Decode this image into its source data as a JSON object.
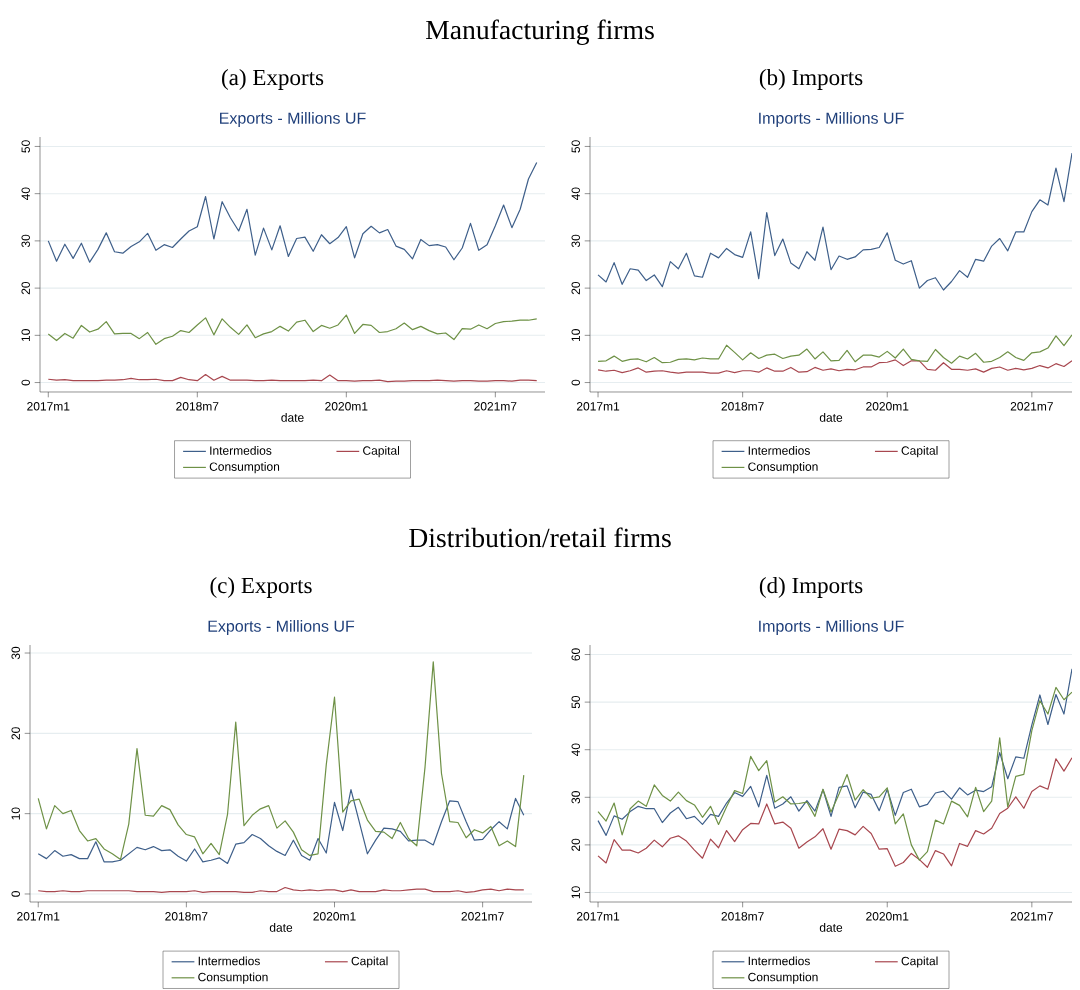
{
  "chart_data": [
    {
      "type": "line",
      "annotations": [
        "Manufacturing firms"
      ],
      "subtitle": "(a) Exports",
      "title": "Exports - Millions UF",
      "xlabel": "date",
      "grid": "y",
      "legend": "bottom",
      "x": [
        "2017-01",
        "2017-02",
        "2017-03",
        "2017-04",
        "2017-05",
        "2017-06",
        "2017-07",
        "2017-08",
        "2017-09",
        "2017-10",
        "2017-11",
        "2017-12",
        "2018-01",
        "2018-02",
        "2018-03",
        "2018-04",
        "2018-05",
        "2018-06",
        "2018-07",
        "2018-08",
        "2018-09",
        "2018-10",
        "2018-11",
        "2018-12",
        "2019-01",
        "2019-02",
        "2019-03",
        "2019-04",
        "2019-05",
        "2019-06",
        "2019-07",
        "2019-08",
        "2019-09",
        "2019-10",
        "2019-11",
        "2019-12",
        "2020-01",
        "2020-02",
        "2020-03",
        "2020-04",
        "2020-05",
        "2020-06",
        "2020-07",
        "2020-08",
        "2020-09",
        "2020-10",
        "2020-11",
        "2020-12",
        "2021-01",
        "2021-02",
        "2021-03",
        "2021-04",
        "2021-05",
        "2021-06",
        "2021-07",
        "2021-08",
        "2021-09",
        "2021-10",
        "2021-11",
        "2021-12"
      ],
      "xlim": [
        "2016-12",
        "2022-01"
      ],
      "xticks": [
        {
          "value": "2017-01",
          "label": "2017m1"
        },
        {
          "value": "2018-07",
          "label": "2018m7"
        },
        {
          "value": "2020-01",
          "label": "2020m1"
        },
        {
          "value": "2021-07",
          "label": "2021m7"
        }
      ],
      "ylim": [
        -2,
        52
      ],
      "yticks": [
        0,
        10,
        20,
        30,
        40,
        50
      ],
      "series": [
        {
          "name": "Intermedios",
          "color": "#3e5f8a",
          "values": [
            30.0,
            25.7,
            29.3,
            26.3,
            29.5,
            25.5,
            28.2,
            31.7,
            27.7,
            27.4,
            28.8,
            29.8,
            31.6,
            28.0,
            29.2,
            28.6,
            30.4,
            32.1,
            33.0,
            39.4,
            30.4,
            38.3,
            34.9,
            32.1,
            36.7,
            27.0,
            32.7,
            28.1,
            33.2,
            26.7,
            30.5,
            30.8,
            27.8,
            31.3,
            29.4,
            30.7,
            33.0,
            26.4,
            31.5,
            33.1,
            31.7,
            32.4,
            28.9,
            28.2,
            26.2,
            30.3,
            29.0,
            29.2,
            28.7,
            26.0,
            28.5,
            33.7,
            28.0,
            29.2,
            33.2,
            37.6,
            32.8,
            36.7,
            43.1,
            46.6
          ]
        },
        {
          "name": "Capital",
          "color": "#a8474f",
          "values": [
            0.7,
            0.5,
            0.6,
            0.4,
            0.4,
            0.4,
            0.4,
            0.5,
            0.5,
            0.6,
            0.9,
            0.6,
            0.6,
            0.7,
            0.4,
            0.4,
            1.1,
            0.6,
            0.4,
            1.7,
            0.5,
            1.3,
            0.5,
            0.5,
            0.5,
            0.4,
            0.4,
            0.5,
            0.4,
            0.4,
            0.4,
            0.4,
            0.5,
            0.4,
            1.6,
            0.4,
            0.4,
            0.3,
            0.4,
            0.4,
            0.5,
            0.2,
            0.3,
            0.3,
            0.4,
            0.4,
            0.4,
            0.5,
            0.4,
            0.3,
            0.4,
            0.4,
            0.3,
            0.3,
            0.4,
            0.4,
            0.3,
            0.5,
            0.5,
            0.4
          ]
        },
        {
          "name": "Consumption",
          "color": "#6e9146",
          "values": [
            10.3,
            8.9,
            10.4,
            9.4,
            12.1,
            10.7,
            11.3,
            12.9,
            10.3,
            10.4,
            10.4,
            9.3,
            10.6,
            8.1,
            9.3,
            9.8,
            11.0,
            10.6,
            12.2,
            13.7,
            10.1,
            13.5,
            11.7,
            10.2,
            12.2,
            9.5,
            10.3,
            10.8,
            11.9,
            10.9,
            12.8,
            13.2,
            10.8,
            12.1,
            11.5,
            12.2,
            14.3,
            10.4,
            12.3,
            12.1,
            10.6,
            10.8,
            11.4,
            12.6,
            11.2,
            11.9,
            11.0,
            10.3,
            10.5,
            9.1,
            11.4,
            11.3,
            12.2,
            11.4,
            12.5,
            12.9,
            13.0,
            13.2,
            13.2,
            13.5
          ]
        }
      ]
    },
    {
      "type": "line",
      "subtitle": "(b) Imports",
      "title": "Imports - Millions UF",
      "xlabel": "date",
      "grid": "y",
      "legend": "bottom",
      "x": [
        "2017-01",
        "2017-02",
        "2017-03",
        "2017-04",
        "2017-05",
        "2017-06",
        "2017-07",
        "2017-08",
        "2017-09",
        "2017-10",
        "2017-11",
        "2017-12",
        "2018-01",
        "2018-02",
        "2018-03",
        "2018-04",
        "2018-05",
        "2018-06",
        "2018-07",
        "2018-08",
        "2018-09",
        "2018-10",
        "2018-11",
        "2018-12",
        "2019-01",
        "2019-02",
        "2019-03",
        "2019-04",
        "2019-05",
        "2019-06",
        "2019-07",
        "2019-08",
        "2019-09",
        "2019-10",
        "2019-11",
        "2019-12",
        "2020-01",
        "2020-02",
        "2020-03",
        "2020-04",
        "2020-05",
        "2020-06",
        "2020-07",
        "2020-08",
        "2020-09",
        "2020-10",
        "2020-11",
        "2020-12",
        "2021-01",
        "2021-02",
        "2021-03",
        "2021-04",
        "2021-05",
        "2021-06",
        "2021-07",
        "2021-08",
        "2021-09",
        "2021-10",
        "2021-11",
        "2021-12"
      ],
      "xlim": [
        "2016-12",
        "2021-12"
      ],
      "xticks": [
        {
          "value": "2017-01",
          "label": "2017m1"
        },
        {
          "value": "2018-07",
          "label": "2018m7"
        },
        {
          "value": "2020-01",
          "label": "2020m1"
        },
        {
          "value": "2021-07",
          "label": "2021m7"
        }
      ],
      "ylim": [
        -2,
        52
      ],
      "yticks": [
        0,
        10,
        20,
        30,
        40,
        50
      ],
      "series": [
        {
          "name": "Intermedios",
          "color": "#3e5f8a",
          "values": [
            22.8,
            21.3,
            25.4,
            20.8,
            24.1,
            23.8,
            21.6,
            22.8,
            20.3,
            25.6,
            24.1,
            27.4,
            22.6,
            22.3,
            27.4,
            26.4,
            28.4,
            27.1,
            26.5,
            31.9,
            22.0,
            36.0,
            26.9,
            30.4,
            25.3,
            24.1,
            27.7,
            25.9,
            32.9,
            23.9,
            26.8,
            26.1,
            26.6,
            28.1,
            28.2,
            28.6,
            31.7,
            25.9,
            25.1,
            25.8,
            20.0,
            21.6,
            22.2,
            19.6,
            21.4,
            23.7,
            22.3,
            26.1,
            25.7,
            28.9,
            30.5,
            27.9,
            31.9,
            31.9,
            36.2,
            38.7,
            37.6,
            45.4,
            38.3,
            48.6
          ]
        },
        {
          "name": "Capital",
          "color": "#a8474f",
          "values": [
            2.7,
            2.4,
            2.6,
            2.1,
            2.5,
            3.1,
            2.2,
            2.4,
            2.5,
            2.2,
            2.0,
            2.2,
            2.2,
            2.2,
            2.0,
            2.0,
            2.5,
            2.1,
            2.5,
            2.5,
            2.2,
            3.1,
            2.4,
            2.4,
            3.2,
            2.2,
            2.3,
            3.2,
            2.6,
            2.9,
            2.5,
            2.8,
            2.7,
            3.3,
            3.3,
            4.2,
            4.3,
            4.8,
            3.6,
            4.6,
            4.6,
            2.8,
            2.6,
            4.2,
            2.8,
            2.8,
            2.6,
            2.9,
            2.2,
            3.0,
            3.3,
            2.6,
            3.0,
            2.7,
            3.0,
            3.6,
            3.1,
            4.0,
            3.4,
            4.6
          ]
        },
        {
          "name": "Consumption",
          "color": "#6e9146",
          "values": [
            4.5,
            4.6,
            5.6,
            4.5,
            4.9,
            5.0,
            4.4,
            5.3,
            4.2,
            4.3,
            4.9,
            5.0,
            4.8,
            5.2,
            5.0,
            5.0,
            7.9,
            6.4,
            4.8,
            6.3,
            5.1,
            5.8,
            6.0,
            5.1,
            5.6,
            5.8,
            7.1,
            5.0,
            6.5,
            4.6,
            4.7,
            6.8,
            4.4,
            5.8,
            5.8,
            5.4,
            6.6,
            5.2,
            7.1,
            4.9,
            4.6,
            4.5,
            7.0,
            5.3,
            4.1,
            5.6,
            5.0,
            6.2,
            4.3,
            4.5,
            5.3,
            6.5,
            5.3,
            4.7,
            6.3,
            6.5,
            7.3,
            9.9,
            7.8,
            10.1
          ]
        }
      ]
    },
    {
      "type": "line",
      "annotations": [
        "Distribution/retail firms"
      ],
      "subtitle": "(c) Exports",
      "title": "Exports - Millions UF",
      "xlabel": "date",
      "grid": "y",
      "legend": "bottom",
      "x": [
        "2017-01",
        "2017-02",
        "2017-03",
        "2017-04",
        "2017-05",
        "2017-06",
        "2017-07",
        "2017-08",
        "2017-09",
        "2017-10",
        "2017-11",
        "2017-12",
        "2018-01",
        "2018-02",
        "2018-03",
        "2018-04",
        "2018-05",
        "2018-06",
        "2018-07",
        "2018-08",
        "2018-09",
        "2018-10",
        "2018-11",
        "2018-12",
        "2019-01",
        "2019-02",
        "2019-03",
        "2019-04",
        "2019-05",
        "2019-06",
        "2019-07",
        "2019-08",
        "2019-09",
        "2019-10",
        "2019-11",
        "2019-12",
        "2020-01",
        "2020-02",
        "2020-03",
        "2020-04",
        "2020-05",
        "2020-06",
        "2020-07",
        "2020-08",
        "2020-09",
        "2020-10",
        "2020-11",
        "2020-12",
        "2021-01",
        "2021-02",
        "2021-03",
        "2021-04",
        "2021-05",
        "2021-06",
        "2021-07",
        "2021-08",
        "2021-09",
        "2021-10",
        "2021-11",
        "2021-12"
      ],
      "xlim": [
        "2016-12",
        "2022-01"
      ],
      "xticks": [
        {
          "value": "2017-01",
          "label": "2017m1"
        },
        {
          "value": "2018-07",
          "label": "2018m7"
        },
        {
          "value": "2020-01",
          "label": "2020m1"
        },
        {
          "value": "2021-07",
          "label": "2021m7"
        }
      ],
      "ylim": [
        -1,
        31
      ],
      "yticks": [
        0,
        10,
        20,
        30
      ],
      "series": [
        {
          "name": "Intermedios",
          "color": "#3e5f8a",
          "values": [
            5.0,
            4.4,
            5.4,
            4.7,
            4.9,
            4.4,
            4.4,
            6.5,
            4.0,
            4.0,
            4.2,
            5.0,
            5.8,
            5.5,
            5.9,
            5.4,
            5.5,
            4.7,
            4.1,
            5.6,
            4.0,
            4.2,
            4.5,
            3.8,
            6.2,
            6.4,
            7.4,
            6.9,
            6.0,
            5.3,
            4.8,
            6.7,
            4.8,
            4.2,
            6.9,
            5.1,
            11.4,
            7.9,
            13.0,
            9.0,
            5.0,
            6.7,
            8.2,
            8.1,
            7.8,
            6.6,
            6.7,
            6.7,
            6.1,
            9.0,
            11.6,
            11.5,
            9.0,
            6.7,
            6.8,
            8.0,
            9.0,
            8.1,
            11.9,
            9.8
          ]
        },
        {
          "name": "Capital",
          "color": "#a8474f",
          "values": [
            0.4,
            0.3,
            0.3,
            0.4,
            0.3,
            0.3,
            0.4,
            0.4,
            0.4,
            0.4,
            0.4,
            0.4,
            0.3,
            0.3,
            0.3,
            0.2,
            0.3,
            0.3,
            0.3,
            0.4,
            0.2,
            0.3,
            0.3,
            0.3,
            0.3,
            0.2,
            0.2,
            0.4,
            0.3,
            0.3,
            0.8,
            0.5,
            0.4,
            0.5,
            0.4,
            0.5,
            0.5,
            0.3,
            0.5,
            0.3,
            0.3,
            0.3,
            0.5,
            0.4,
            0.4,
            0.5,
            0.6,
            0.6,
            0.3,
            0.3,
            0.3,
            0.4,
            0.2,
            0.3,
            0.5,
            0.6,
            0.4,
            0.6,
            0.5,
            0.5
          ]
        },
        {
          "name": "Consumption",
          "color": "#6e9146",
          "values": [
            11.9,
            8.1,
            11.0,
            10.0,
            10.4,
            7.9,
            6.6,
            6.9,
            5.6,
            5.0,
            4.3,
            8.7,
            18.1,
            9.8,
            9.7,
            11.0,
            10.5,
            8.6,
            7.4,
            7.1,
            5.0,
            6.3,
            4.9,
            9.9,
            21.4,
            8.5,
            9.8,
            10.6,
            11.0,
            8.2,
            9.1,
            7.7,
            5.5,
            4.8,
            5.0,
            16.1,
            24.5,
            10.2,
            11.6,
            11.8,
            9.2,
            7.8,
            7.7,
            6.9,
            8.9,
            6.9,
            6.0,
            15.8,
            28.9,
            15.0,
            9.0,
            8.9,
            7.0,
            8.0,
            7.6,
            8.4,
            6.0,
            6.6,
            5.9,
            14.8
          ]
        }
      ]
    },
    {
      "type": "line",
      "subtitle": "(d) Imports",
      "title": "Imports - Millions UF",
      "xlabel": "date",
      "grid": "y",
      "legend": "bottom",
      "x": [
        "2017-01",
        "2017-02",
        "2017-03",
        "2017-04",
        "2017-05",
        "2017-06",
        "2017-07",
        "2017-08",
        "2017-09",
        "2017-10",
        "2017-11",
        "2017-12",
        "2018-01",
        "2018-02",
        "2018-03",
        "2018-04",
        "2018-05",
        "2018-06",
        "2018-07",
        "2018-08",
        "2018-09",
        "2018-10",
        "2018-11",
        "2018-12",
        "2019-01",
        "2019-02",
        "2019-03",
        "2019-04",
        "2019-05",
        "2019-06",
        "2019-07",
        "2019-08",
        "2019-09",
        "2019-10",
        "2019-11",
        "2019-12",
        "2020-01",
        "2020-02",
        "2020-03",
        "2020-04",
        "2020-05",
        "2020-06",
        "2020-07",
        "2020-08",
        "2020-09",
        "2020-10",
        "2020-11",
        "2020-12",
        "2021-01",
        "2021-02",
        "2021-03",
        "2021-04",
        "2021-05",
        "2021-06",
        "2021-07",
        "2021-08",
        "2021-09",
        "2021-10",
        "2021-11",
        "2021-12"
      ],
      "xlim": [
        "2016-12",
        "2021-12"
      ],
      "xticks": [
        {
          "value": "2017-01",
          "label": "2017m1"
        },
        {
          "value": "2018-07",
          "label": "2018m7"
        },
        {
          "value": "2020-01",
          "label": "2020m1"
        },
        {
          "value": "2021-07",
          "label": "2021m7"
        }
      ],
      "ylim": [
        8,
        62
      ],
      "yticks": [
        10,
        20,
        30,
        40,
        50,
        60
      ],
      "series": [
        {
          "name": "Intermedios",
          "color": "#3e5f8a",
          "values": [
            25.1,
            22.0,
            26.1,
            25.4,
            27.0,
            28.1,
            27.6,
            27.6,
            24.7,
            26.7,
            27.9,
            25.5,
            26.0,
            24.3,
            26.4,
            26.0,
            28.8,
            31.0,
            30.2,
            32.3,
            28.0,
            34.6,
            27.7,
            28.6,
            30.1,
            27.1,
            29.3,
            27.1,
            31.6,
            26.0,
            32.1,
            32.4,
            27.8,
            31.1,
            30.6,
            27.2,
            31.7,
            26.2,
            31.0,
            31.7,
            28.0,
            28.5,
            30.9,
            31.3,
            29.6,
            32.0,
            30.5,
            31.5,
            31.2,
            32.2,
            39.4,
            33.9,
            38.5,
            38.2,
            45.2,
            51.5,
            45.3,
            51.6,
            47.5,
            57.0
          ]
        },
        {
          "name": "Capital",
          "color": "#a8474f",
          "values": [
            17.7,
            16.2,
            21.1,
            18.9,
            18.9,
            18.3,
            19.3,
            21.0,
            19.6,
            21.4,
            21.9,
            20.8,
            18.9,
            17.2,
            21.2,
            19.4,
            23.0,
            20.7,
            23.2,
            24.5,
            24.4,
            28.6,
            24.4,
            24.8,
            23.5,
            19.3,
            20.6,
            21.7,
            23.4,
            19.1,
            23.3,
            23.0,
            22.1,
            23.9,
            22.4,
            19.1,
            19.2,
            15.5,
            16.3,
            18.2,
            16.9,
            15.3,
            18.8,
            18.1,
            15.6,
            20.3,
            19.7,
            23.0,
            22.3,
            23.5,
            26.6,
            27.7,
            30.1,
            27.7,
            31.2,
            32.4,
            31.7,
            38.1,
            35.5,
            38.3
          ]
        },
        {
          "name": "Consumption",
          "color": "#6e9146",
          "values": [
            27.0,
            25.0,
            28.8,
            22.1,
            27.6,
            29.2,
            28.1,
            32.6,
            30.4,
            29.2,
            31.1,
            29.3,
            28.4,
            25.8,
            28.1,
            24.3,
            28.0,
            31.4,
            30.8,
            38.6,
            35.6,
            37.7,
            29.0,
            30.1,
            28.6,
            28.7,
            29.0,
            26.0,
            31.7,
            26.9,
            30.7,
            34.8,
            29.4,
            31.6,
            29.8,
            30.1,
            32.0,
            24.4,
            26.5,
            20.0,
            16.8,
            18.6,
            25.2,
            24.4,
            29.2,
            28.3,
            25.9,
            32.1,
            27.0,
            29.2,
            42.5,
            28.0,
            34.4,
            34.8,
            44.0,
            50.3,
            47.5,
            53.1,
            50.5,
            52.1
          ]
        }
      ]
    }
  ]
}
